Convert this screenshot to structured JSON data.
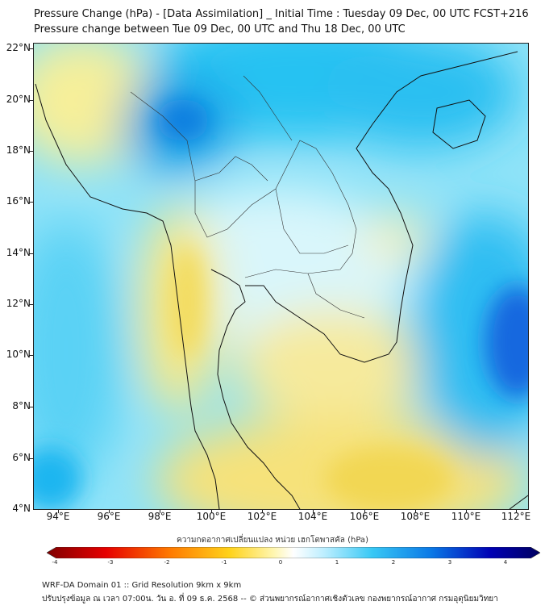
{
  "title": {
    "line1": "Pressure Change (hPa) - [Data Assimilation] _ Initial Time : Tuesday 09 Dec, 00 UTC FCST+216",
    "line2": "Pressure change between Tue 09 Dec, 00 UTC and Thu 18 Dec, 00 UTC"
  },
  "map": {
    "lat_labels": [
      "22°N",
      "20°N",
      "18°N",
      "16°N",
      "14°N",
      "12°N",
      "10°N",
      "8°N",
      "6°N",
      "4°N"
    ],
    "lon_labels": [
      "94°E",
      "96°E",
      "98°E",
      "100°E",
      "102°E",
      "104°E",
      "106°E",
      "108°E",
      "110°E",
      "112°E"
    ],
    "lat_range": [
      4,
      22.2
    ],
    "lon_range": [
      93,
      112.4
    ]
  },
  "colorbar": {
    "title": "ความกดอากาศเปลี่ยนแปลง หน่วย เฮกโตพาสคัล (hPa)",
    "ticks": [
      "-4",
      "-3",
      "-2",
      "-1",
      "0",
      "1",
      "2",
      "3",
      "4"
    ],
    "range": [
      -4,
      4
    ],
    "colors": [
      "#7f0000",
      "#e60000",
      "#ff7a00",
      "#ffd21a",
      "#fff6b0",
      "#ffffff",
      "#bfefff",
      "#38c8f5",
      "#0a78e6",
      "#0000b4",
      "#000060"
    ]
  },
  "footer": {
    "line1": "WRF-DA Domain 01 :: Grid Resolution 9km x 9km",
    "line2": "ปรับปรุงข้อมูล ณ เวลา 07:00น. วัน อ. ที่ 09 ธ.ค. 2568 -- © ส่วนพยากรณ์อากาศเชิงตัวเลข กองพยากรณ์อากาศ กรมอุตุนิยมวิทยา"
  }
}
